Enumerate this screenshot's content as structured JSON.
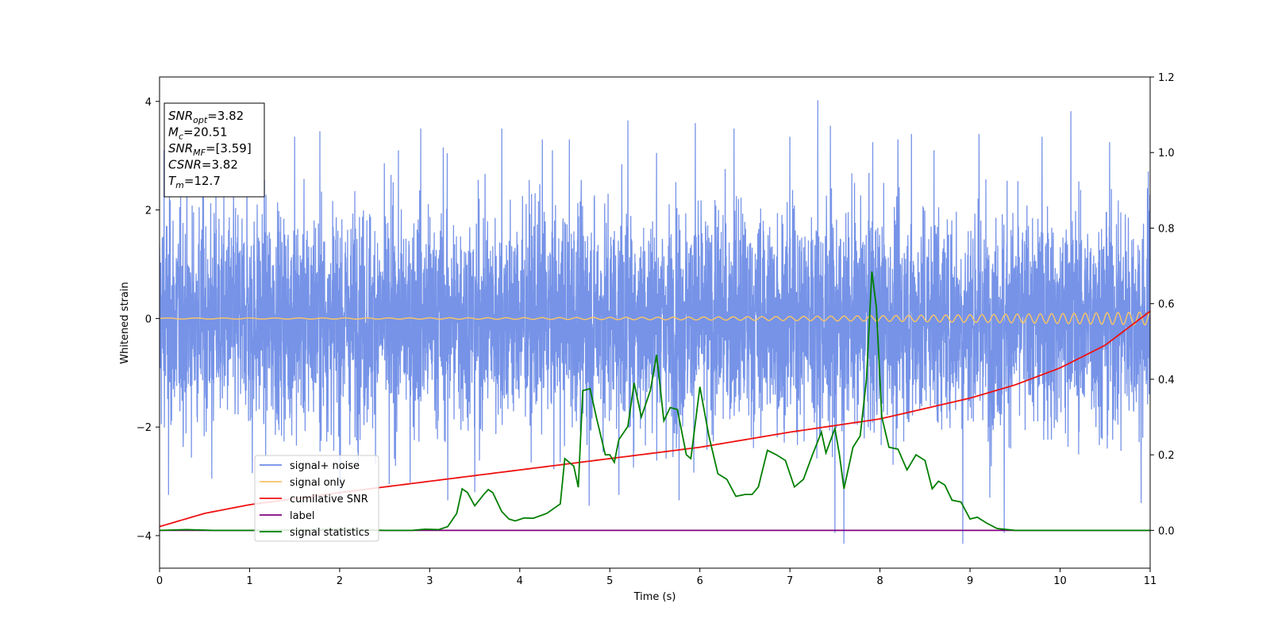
{
  "chart_data": {
    "type": "line",
    "xlabel": "Time (s)",
    "ylabel": "Whitened strain",
    "xlim": [
      0,
      11
    ],
    "ylim": [
      -4.6,
      4.45
    ],
    "y2lim": [
      -0.1,
      1.2
    ],
    "x_ticks": [
      0,
      1,
      2,
      3,
      4,
      5,
      6,
      7,
      8,
      9,
      10,
      11
    ],
    "x_tick_labels": [
      "0",
      "1",
      "2",
      "3",
      "4",
      "5",
      "6",
      "7",
      "8",
      "9",
      "10",
      "11"
    ],
    "y_ticks": [
      -4,
      -2,
      0,
      2,
      4
    ],
    "y_tick_labels": [
      "−4",
      "−2",
      "0",
      "2",
      "4"
    ],
    "y2_ticks": [
      0.0,
      0.2,
      0.4,
      0.6,
      0.8,
      1.0,
      1.2
    ],
    "y2_tick_labels": [
      "0.0",
      "0.2",
      "0.4",
      "0.6",
      "0.8",
      "1.0",
      "1.2"
    ],
    "grid": false,
    "legend_position": "lower-left",
    "colors": {
      "signal_noise": "#6f8de6",
      "signal_only": "#f5c36b",
      "cumulative_snr": "#ee1111",
      "label": "#800080",
      "signal_statistics": "#007f00"
    },
    "annotation": {
      "lines": [
        {
          "main": "SNR",
          "sub": "opt",
          "rest": "=3.82"
        },
        {
          "main": "M",
          "sub": "c",
          "rest": "=20.51"
        },
        {
          "main": "SNR",
          "sub": "MF",
          "rest": "=[3.59]"
        },
        {
          "main": "CSNR",
          "sub": "",
          "rest": "=3.82"
        },
        {
          "main": "T",
          "sub": "m",
          "rest": "=12.7"
        }
      ]
    },
    "series": [
      {
        "name": "signal+ noise",
        "axis": "left",
        "description_values": {
          "typical_range": [
            -2.5,
            2.5
          ],
          "max": 4.02,
          "max_x": 7.31,
          "min": -4.15,
          "min_x": 7.6
        },
        "spikes": [
          {
            "x": 0.05,
            "y": 3.1
          },
          {
            "x": 0.1,
            "y": -3.25
          },
          {
            "x": 0.48,
            "y": 3.2
          },
          {
            "x": 0.58,
            "y": -2.95
          },
          {
            "x": 0.97,
            "y": 3.15
          },
          {
            "x": 1.03,
            "y": -2.85
          },
          {
            "x": 1.5,
            "y": 3.35
          },
          {
            "x": 1.78,
            "y": 3.45
          },
          {
            "x": 2.0,
            "y": -3.4
          },
          {
            "x": 2.55,
            "y": -3.05
          },
          {
            "x": 2.9,
            "y": 3.5
          },
          {
            "x": 3.15,
            "y": 3.15
          },
          {
            "x": 3.2,
            "y": -3.35
          },
          {
            "x": 3.5,
            "y": -3.2
          },
          {
            "x": 3.8,
            "y": 3.5
          },
          {
            "x": 4.25,
            "y": 3.3
          },
          {
            "x": 4.55,
            "y": 3.3
          },
          {
            "x": 4.77,
            "y": -3.45
          },
          {
            "x": 5.1,
            "y": -3.25
          },
          {
            "x": 5.2,
            "y": 3.65
          },
          {
            "x": 5.52,
            "y": 3.05
          },
          {
            "x": 5.77,
            "y": -3.35
          },
          {
            "x": 5.95,
            "y": 3.6
          },
          {
            "x": 6.38,
            "y": 3.5
          },
          {
            "x": 7.0,
            "y": 3.35
          },
          {
            "x": 7.31,
            "y": 4.02
          },
          {
            "x": 7.45,
            "y": 3.55
          },
          {
            "x": 7.5,
            "y": -3.95
          },
          {
            "x": 7.6,
            "y": -4.15
          },
          {
            "x": 7.92,
            "y": 3.25
          },
          {
            "x": 8.2,
            "y": 3.3
          },
          {
            "x": 8.35,
            "y": 3.4
          },
          {
            "x": 8.6,
            "y": 3.1
          },
          {
            "x": 8.92,
            "y": -4.15
          },
          {
            "x": 9.1,
            "y": 3.4
          },
          {
            "x": 9.22,
            "y": -3.3
          },
          {
            "x": 9.38,
            "y": -3.95
          },
          {
            "x": 9.8,
            "y": 3.35
          },
          {
            "x": 10.12,
            "y": 3.82
          },
          {
            "x": 10.55,
            "y": 3.25
          },
          {
            "x": 10.9,
            "y": -3.4
          },
          {
            "x": 10.97,
            "y": 2.4
          }
        ]
      },
      {
        "name": "signal only",
        "axis": "left",
        "description_values": {
          "amplitude_start": 0.01,
          "amplitude_end": 0.12,
          "center": 0
        }
      },
      {
        "name": "cumilative SNR",
        "axis": "right",
        "points": [
          [
            0.0,
            0.01
          ],
          [
            0.5,
            0.045
          ],
          [
            1.0,
            0.068
          ],
          [
            2.0,
            0.1
          ],
          [
            3.0,
            0.13
          ],
          [
            4.0,
            0.16
          ],
          [
            5.0,
            0.19
          ],
          [
            6.0,
            0.22
          ],
          [
            7.0,
            0.26
          ],
          [
            8.0,
            0.295
          ],
          [
            9.0,
            0.35
          ],
          [
            9.5,
            0.385
          ],
          [
            10.0,
            0.43
          ],
          [
            10.5,
            0.49
          ],
          [
            11.0,
            0.58
          ]
        ]
      },
      {
        "name": "label",
        "axis": "right",
        "points": [
          [
            0.0,
            0.0
          ],
          [
            11.0,
            0.0
          ]
        ]
      },
      {
        "name": "signal statistics",
        "axis": "right",
        "points": [
          [
            0.0,
            0.0
          ],
          [
            0.3,
            0.002
          ],
          [
            0.6,
            0.0
          ],
          [
            1.0,
            0.0
          ],
          [
            1.5,
            0.001
          ],
          [
            2.0,
            0.003
          ],
          [
            2.5,
            0.0
          ],
          [
            2.8,
            0.0
          ],
          [
            2.95,
            0.003
          ],
          [
            3.1,
            0.002
          ],
          [
            3.2,
            0.01
          ],
          [
            3.3,
            0.045
          ],
          [
            3.36,
            0.11
          ],
          [
            3.42,
            0.1
          ],
          [
            3.5,
            0.065
          ],
          [
            3.6,
            0.095
          ],
          [
            3.65,
            0.108
          ],
          [
            3.7,
            0.1
          ],
          [
            3.8,
            0.05
          ],
          [
            3.88,
            0.03
          ],
          [
            3.95,
            0.025
          ],
          [
            4.05,
            0.033
          ],
          [
            4.15,
            0.032
          ],
          [
            4.3,
            0.045
          ],
          [
            4.45,
            0.07
          ],
          [
            4.5,
            0.19
          ],
          [
            4.6,
            0.17
          ],
          [
            4.65,
            0.114
          ],
          [
            4.7,
            0.37
          ],
          [
            4.78,
            0.375
          ],
          [
            4.85,
            0.3
          ],
          [
            4.95,
            0.2
          ],
          [
            5.0,
            0.2
          ],
          [
            5.05,
            0.18
          ],
          [
            5.1,
            0.24
          ],
          [
            5.2,
            0.275
          ],
          [
            5.27,
            0.39
          ],
          [
            5.35,
            0.3
          ],
          [
            5.45,
            0.37
          ],
          [
            5.52,
            0.465
          ],
          [
            5.6,
            0.29
          ],
          [
            5.67,
            0.325
          ],
          [
            5.75,
            0.32
          ],
          [
            5.85,
            0.2
          ],
          [
            5.9,
            0.19
          ],
          [
            6.0,
            0.38
          ],
          [
            6.1,
            0.25
          ],
          [
            6.2,
            0.15
          ],
          [
            6.3,
            0.135
          ],
          [
            6.4,
            0.09
          ],
          [
            6.5,
            0.095
          ],
          [
            6.58,
            0.095
          ],
          [
            6.65,
            0.115
          ],
          [
            6.75,
            0.212
          ],
          [
            6.85,
            0.2
          ],
          [
            6.95,
            0.185
          ],
          [
            7.05,
            0.115
          ],
          [
            7.15,
            0.135
          ],
          [
            7.25,
            0.2
          ],
          [
            7.35,
            0.26
          ],
          [
            7.4,
            0.205
          ],
          [
            7.5,
            0.27
          ],
          [
            7.55,
            0.2
          ],
          [
            7.6,
            0.11
          ],
          [
            7.7,
            0.22
          ],
          [
            7.78,
            0.25
          ],
          [
            7.85,
            0.4
          ],
          [
            7.91,
            0.685
          ],
          [
            7.96,
            0.59
          ],
          [
            8.02,
            0.3
          ],
          [
            8.1,
            0.22
          ],
          [
            8.2,
            0.215
          ],
          [
            8.3,
            0.16
          ],
          [
            8.4,
            0.2
          ],
          [
            8.5,
            0.185
          ],
          [
            8.58,
            0.11
          ],
          [
            8.65,
            0.13
          ],
          [
            8.72,
            0.12
          ],
          [
            8.8,
            0.08
          ],
          [
            8.9,
            0.075
          ],
          [
            9.0,
            0.03
          ],
          [
            9.08,
            0.035
          ],
          [
            9.18,
            0.02
          ],
          [
            9.3,
            0.005
          ],
          [
            9.5,
            0.0
          ],
          [
            10.0,
            0.0
          ],
          [
            11.0,
            0.0
          ]
        ]
      }
    ]
  }
}
